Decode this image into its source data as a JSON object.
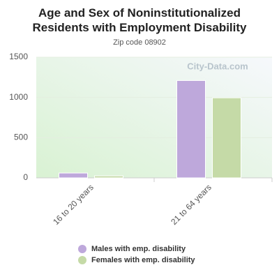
{
  "chart_data": {
    "type": "bar",
    "title": "Age and Sex of Noninstitutionalized Residents with Employment Disability",
    "subtitle": "Zip code 08902",
    "watermark": "City-Data.com",
    "categories": [
      "16 to 20 years",
      "21 to 64 years"
    ],
    "series": [
      {
        "name": "Males with emp. disability",
        "color": "#bea8db",
        "values": [
          60,
          1210
        ]
      },
      {
        "name": "Females with emp. disability",
        "color": "#c5daa7",
        "values": [
          25,
          995
        ]
      }
    ],
    "ylim": [
      0,
      1500
    ],
    "yticks": [
      0,
      500,
      1000,
      1500
    ],
    "grid": true
  }
}
